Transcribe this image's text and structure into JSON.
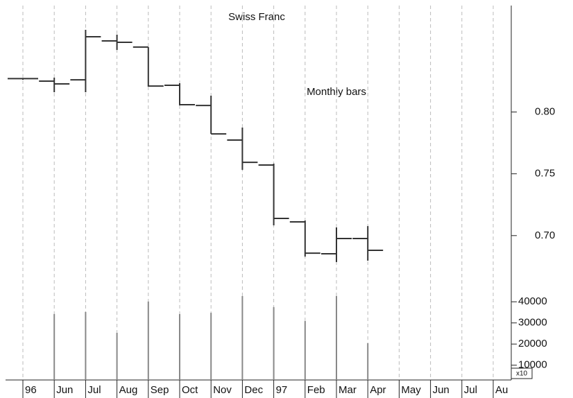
{
  "chart_data": {
    "type": "ohlc",
    "title": "Swiss Franc",
    "annotations": [
      "Monthly bars",
      "x10"
    ],
    "categories": [
      "96",
      "Jun",
      "Jul",
      "Aug",
      "Sep",
      "Oct",
      "Nov",
      "Dec",
      "97",
      "Feb",
      "Mar",
      "Apr",
      "May",
      "Jun",
      "Jul",
      "Au"
    ],
    "open": [
      0.827,
      0.825,
      0.826,
      0.8575,
      0.8525,
      0.8216,
      0.8053,
      0.7773,
      0.7571,
      0.7111,
      0.6853,
      0.6976,
      null,
      null,
      null,
      null
    ],
    "high": [
      0.8272,
      0.8278,
      0.8665,
      0.8626,
      0.8525,
      0.8233,
      0.8132,
      0.7874,
      0.7582,
      0.7122,
      0.7066,
      0.7077,
      null,
      null,
      null,
      null
    ],
    "low": [
      0.8261,
      0.816,
      0.816,
      0.8502,
      0.8205,
      0.8053,
      0.7823,
      0.7532,
      0.7083,
      0.683,
      0.6786,
      0.6797,
      null,
      null,
      null,
      null
    ],
    "close": [
      0.827,
      0.8227,
      0.8609,
      0.8564,
      0.821,
      0.8059,
      0.7823,
      0.7593,
      0.7139,
      0.6858,
      0.6976,
      0.6881,
      null,
      null,
      null,
      null
    ],
    "volume": [
      null,
      34200,
      35200,
      25300,
      40100,
      34200,
      34800,
      42700,
      37500,
      30900,
      42700,
      20400,
      null,
      null,
      null,
      null
    ],
    "bar_color": "#333333",
    "volume_color": "#888888",
    "ylim": [
      0.655,
      0.885
    ],
    "yticks": [
      {
        "value": 0.8,
        "label": "0.80"
      },
      {
        "value": 0.75,
        "label": "0.75"
      },
      {
        "value": 0.7,
        "label": "0.70"
      }
    ],
    "y2lim": [
      3000,
      45000
    ],
    "y2ticks": [
      40000,
      30000,
      20000,
      10000
    ],
    "grid": true
  }
}
